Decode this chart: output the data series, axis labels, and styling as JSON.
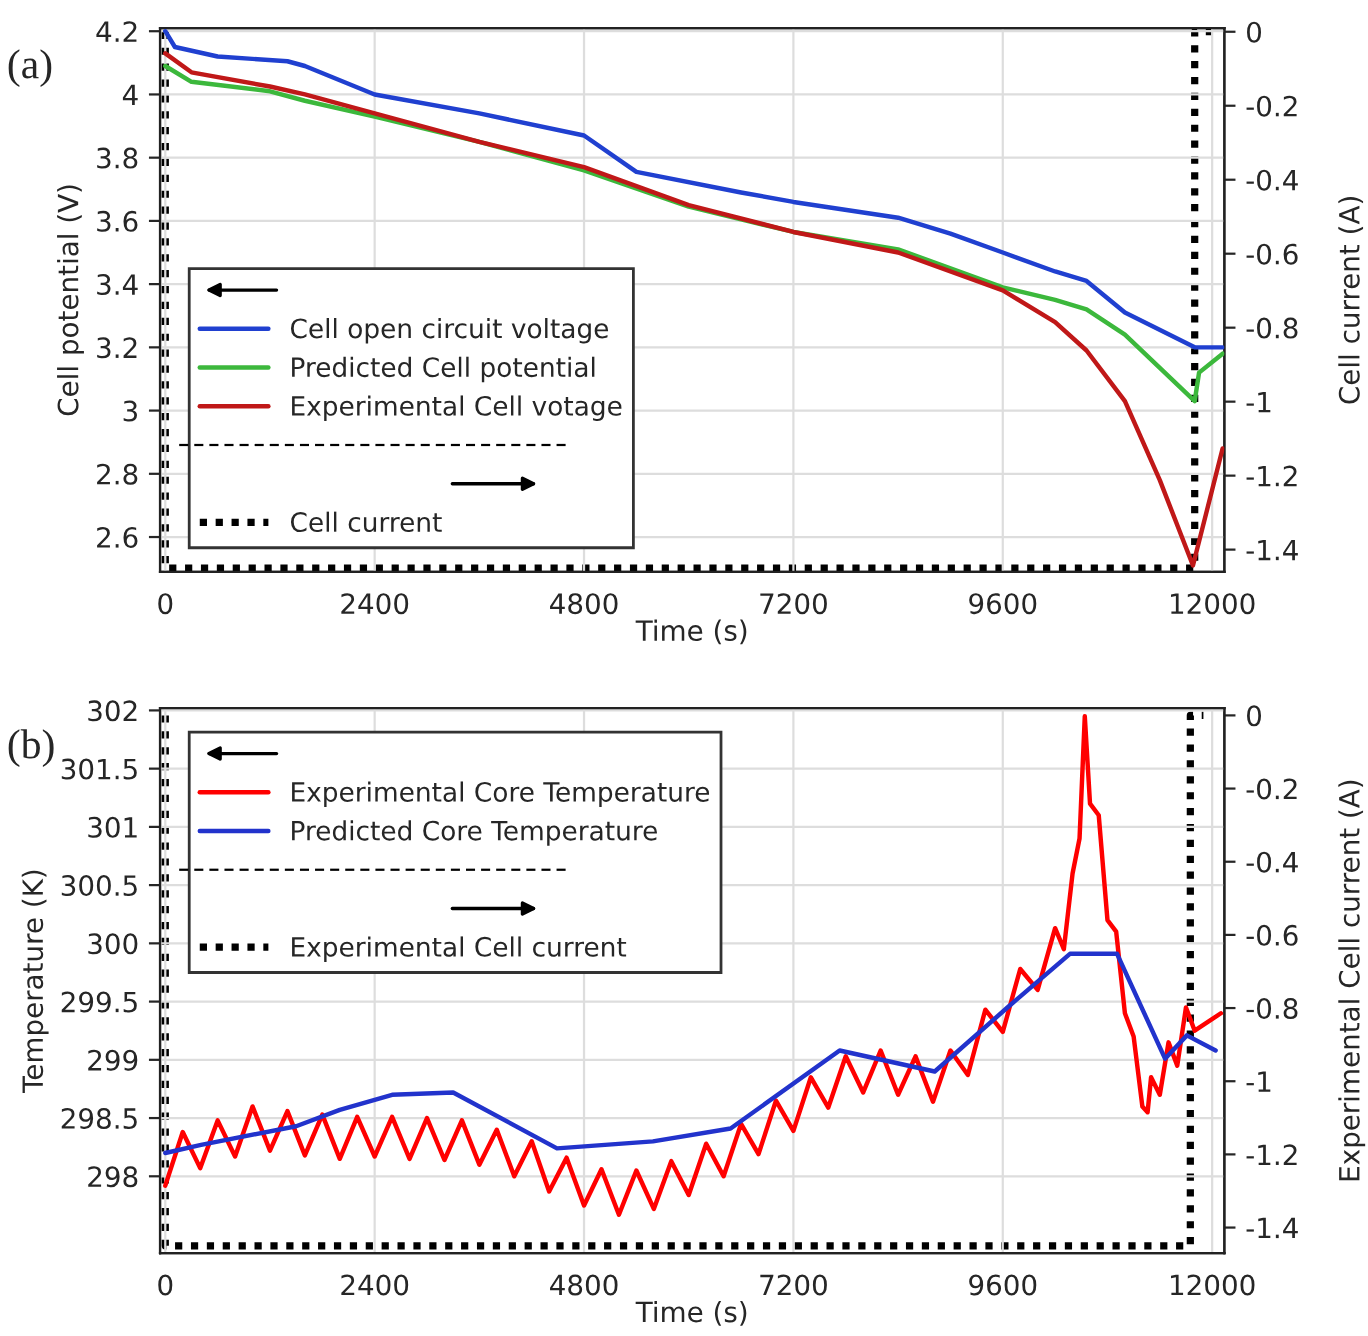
{
  "chart_data": [
    {
      "type": "line",
      "xlabel": "Time (s)",
      "ylabel": "Cell potential (V)",
      "y2label": "Cell current (A)",
      "annotations": [
        "(a)"
      ],
      "xlim": [
        -60,
        12140
      ],
      "xticks": [
        0,
        2400,
        4800,
        7200,
        9600,
        12000
      ],
      "ylim": [
        2.49,
        4.21
      ],
      "yticks": [
        2.6,
        2.8,
        3,
        3.2,
        3.4,
        3.6,
        3.8,
        4,
        4.2
      ],
      "y2lim": [
        -1.46,
        0.01
      ],
      "y2ticks": [
        -1.4,
        -1.2,
        -1,
        -0.8,
        -0.6,
        -0.4,
        -0.2,
        0
      ],
      "grid": true,
      "legend": "bottom left",
      "series": [
        {
          "name": "Cell open circuit voltage",
          "color": "#2040d0",
          "line_style": "solid",
          "x": [
            0,
            110,
            600,
            1400,
            1600,
            2400,
            3600,
            4800,
            5400,
            6600,
            7200,
            8400,
            9000,
            9600,
            10200,
            10560,
            11000,
            11800,
            12120
          ],
          "values": [
            4.2,
            4.15,
            4.12,
            4.105,
            4.09,
            4.0,
            3.94,
            3.87,
            3.755,
            3.69,
            3.66,
            3.61,
            3.56,
            3.5,
            3.44,
            3.41,
            3.31,
            3.2,
            3.2
          ]
        },
        {
          "name": "Predicted Cell potential",
          "color": "#3cb83c",
          "line_style": "solid",
          "x": [
            0,
            300,
            1200,
            1600,
            2400,
            3600,
            4800,
            6000,
            7200,
            8400,
            9600,
            10200,
            10560,
            11000,
            11800,
            11850,
            12120
          ],
          "values": [
            4.09,
            4.04,
            4.01,
            3.98,
            3.93,
            3.85,
            3.76,
            3.645,
            3.565,
            3.51,
            3.39,
            3.35,
            3.32,
            3.24,
            3.03,
            3.12,
            3.18
          ]
        },
        {
          "name": "Experimental Cell votage",
          "color": "#c01818",
          "line_style": "solid",
          "x": [
            0,
            300,
            1200,
            1600,
            2400,
            3600,
            4800,
            6000,
            7200,
            8400,
            9600,
            10200,
            10560,
            11000,
            11400,
            11780,
            12120
          ],
          "values": [
            4.13,
            4.07,
            4.025,
            4.0,
            3.94,
            3.85,
            3.77,
            3.65,
            3.565,
            3.5,
            3.38,
            3.28,
            3.19,
            3.03,
            2.78,
            2.51,
            2.88
          ]
        },
        {
          "name": "Cell current",
          "color": "#000000",
          "line_style": "dotted",
          "axis": "y2",
          "x": [
            0,
            0,
            11800,
            11800,
            12000
          ],
          "values": [
            0,
            -1.45,
            -1.45,
            0,
            0
          ]
        }
      ]
    },
    {
      "type": "line",
      "xlabel": "Time (s)",
      "ylabel": "Temperature (K)",
      "y2label": "Experimental Cell current (A)",
      "annotations": [
        "(b)"
      ],
      "xlim": [
        -60,
        12140
      ],
      "xticks": [
        0,
        2400,
        4800,
        7200,
        9600,
        12000
      ],
      "ylim": [
        297.34,
        302.02
      ],
      "yticks": [
        298,
        298.5,
        299,
        299.5,
        300,
        300.5,
        301,
        301.5,
        302
      ],
      "y2lim": [
        -1.47,
        0.02
      ],
      "y2ticks": [
        -1.4,
        -1.2,
        -1,
        -0.8,
        -0.6,
        -0.4,
        -0.2,
        0
      ],
      "grid": true,
      "legend": "top left",
      "series": [
        {
          "name": "Experimental Core Temperature",
          "color": "#ff0000",
          "line_style": "solid",
          "x": [
            0,
            200,
            400,
            600,
            800,
            1000,
            1200,
            1400,
            1600,
            1800,
            2000,
            2200,
            2400,
            2600,
            2800,
            3000,
            3200,
            3400,
            3600,
            3800,
            4000,
            4200,
            4400,
            4600,
            4800,
            5000,
            5200,
            5400,
            5600,
            5800,
            6000,
            6200,
            6400,
            6600,
            6800,
            7000,
            7200,
            7400,
            7600,
            7800,
            8000,
            8200,
            8400,
            8600,
            8800,
            9000,
            9200,
            9400,
            9600,
            9800,
            10000,
            10200,
            10300,
            10400,
            10480,
            10540,
            10600,
            10700,
            10800,
            10900,
            11000,
            11100,
            11200,
            11260,
            11300,
            11400,
            11500,
            11600,
            11700,
            11800,
            12100
          ],
          "values": [
            297.92,
            298.38,
            298.07,
            298.48,
            298.17,
            298.6,
            298.22,
            298.56,
            298.18,
            298.53,
            298.15,
            298.51,
            298.17,
            298.51,
            298.15,
            298.5,
            298.14,
            298.48,
            298.1,
            298.4,
            298.0,
            298.3,
            297.87,
            298.16,
            297.75,
            298.06,
            297.67,
            298.05,
            297.72,
            298.13,
            297.84,
            298.28,
            298.0,
            298.45,
            298.19,
            298.65,
            298.39,
            298.85,
            298.59,
            299.03,
            298.72,
            299.08,
            298.7,
            299.03,
            298.64,
            299.08,
            298.87,
            299.43,
            299.24,
            299.78,
            299.6,
            300.13,
            299.95,
            300.6,
            300.9,
            301.95,
            301.2,
            301.1,
            300.2,
            300.1,
            299.4,
            299.2,
            298.6,
            298.55,
            298.85,
            298.7,
            299.15,
            298.95,
            299.45,
            299.25,
            299.4
          ]
        },
        {
          "name": "Predicted Core Temperature",
          "color": "#2233cc",
          "line_style": "solid",
          "x": [
            0,
            410,
            1500,
            2000,
            2600,
            3300,
            4490,
            5590,
            6480,
            7730,
            8820,
            9670,
            10370,
            10910,
            11460,
            11710,
            12040
          ],
          "values": [
            298.2,
            298.27,
            298.43,
            298.57,
            298.7,
            298.72,
            298.24,
            298.3,
            298.41,
            299.08,
            298.9,
            299.46,
            299.91,
            299.91,
            299.01,
            299.21,
            299.08
          ]
        },
        {
          "name": "Experimental Cell current",
          "color": "#000000",
          "line_style": "dotted",
          "axis": "y2",
          "x": [
            0,
            0,
            11750,
            11750,
            11900
          ],
          "values": [
            0,
            -1.45,
            -1.45,
            0,
            0
          ]
        }
      ]
    }
  ]
}
